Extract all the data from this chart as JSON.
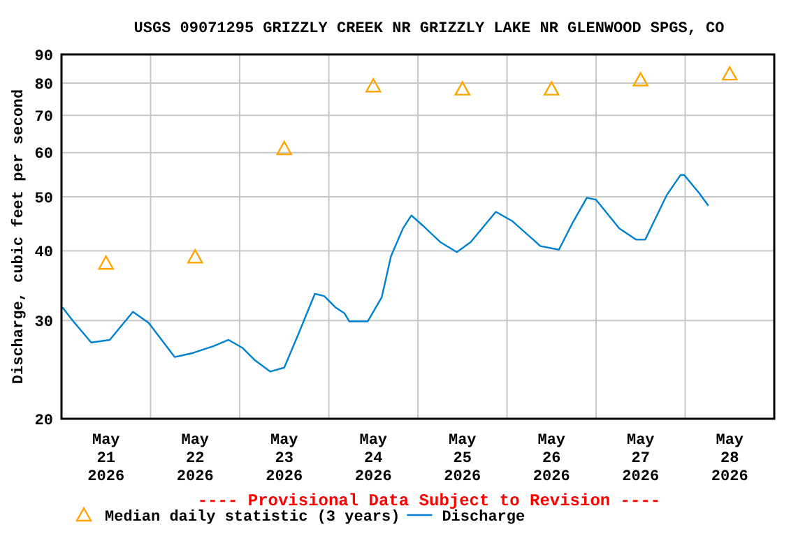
{
  "chart_data": {
    "type": "line",
    "title": "USGS 09071295 GRIZZLY CREEK NR GRIZZLY LAKE NR GLENWOOD SPGS, CO",
    "ylabel": "Discharge, cubic feet per second",
    "annotations": [
      "---- Provisional Data Subject to Revision ----"
    ],
    "xlim": [
      "2026-05-21T00:00",
      "2026-05-29T00:00"
    ],
    "xticks": [
      {
        "value": "2026-05-21T12:00",
        "label": "May\n21\n2026"
      },
      {
        "value": "2026-05-22T00:00",
        "label": null
      },
      {
        "value": "2026-05-22T12:00",
        "label": "May\n22\n2026"
      },
      {
        "value": "2026-05-23T00:00",
        "label": null
      },
      {
        "value": "2026-05-23T12:00",
        "label": "May\n23\n2026"
      },
      {
        "value": "2026-05-24T00:00",
        "label": null
      },
      {
        "value": "2026-05-24T12:00",
        "label": "May\n24\n2026"
      },
      {
        "value": "2026-05-25T00:00",
        "label": null
      },
      {
        "value": "2026-05-25T12:00",
        "label": "May\n25\n2026"
      },
      {
        "value": "2026-05-26T00:00",
        "label": null
      },
      {
        "value": "2026-05-26T12:00",
        "label": "May\n26\n2026"
      },
      {
        "value": "2026-05-27T00:00",
        "label": null
      },
      {
        "value": "2026-05-27T12:00",
        "label": "May\n27\n2026"
      },
      {
        "value": "2026-05-28T00:00",
        "label": null
      },
      {
        "value": "2026-05-28T12:00",
        "label": "May\n28\n2026"
      }
    ],
    "ylim": [
      20,
      90
    ],
    "yticks": [
      20,
      30,
      40,
      50,
      60,
      70,
      80,
      90
    ],
    "log": true,
    "grid": true,
    "legend": "bottom",
    "series": [
      {
        "name": "Median daily statistic (3 years)",
        "type": "scatter",
        "marker": "triangle",
        "color": "#ffa500",
        "x": [
          "2026-05-21T12:00",
          "2026-05-22T12:00",
          "2026-05-23T12:00",
          "2026-05-24T12:00",
          "2026-05-25T12:00",
          "2026-05-26T12:00",
          "2026-05-27T12:00",
          "2026-05-28T12:00"
        ],
        "values": [
          38,
          39,
          61,
          79,
          78,
          78,
          81,
          83
        ]
      },
      {
        "name": "Discharge",
        "marker": "none",
        "color": "#0080d0",
        "x": [
          "2026-05-21T00:15",
          "2026-05-21T03:00",
          "2026-05-21T08:00",
          "2026-05-21T13:00",
          "2026-05-21T19:15",
          "2026-05-21T23:30",
          "2026-05-22T06:30",
          "2026-05-22T11:00",
          "2026-05-22T17:00",
          "2026-05-22T21:00",
          "2026-05-23T00:45",
          "2026-05-23T04:00",
          "2026-05-23T08:15",
          "2026-05-23T12:00",
          "2026-05-23T15:45",
          "2026-05-23T20:15",
          "2026-05-23T22:45",
          "2026-05-24T01:45",
          "2026-05-24T04:15",
          "2026-05-24T05:30",
          "2026-05-24T10:30",
          "2026-05-24T14:15",
          "2026-05-24T16:45",
          "2026-05-24T20:00",
          "2026-05-24T22:15",
          "2026-05-25T01:30",
          "2026-05-25T06:00",
          "2026-05-25T10:30",
          "2026-05-25T14:15",
          "2026-05-25T21:00",
          "2026-05-26T01:30",
          "2026-05-26T09:00",
          "2026-05-26T14:00",
          "2026-05-26T17:45",
          "2026-05-26T21:30",
          "2026-05-27T00:00",
          "2026-05-27T06:15",
          "2026-05-27T10:45",
          "2026-05-27T13:15",
          "2026-05-27T19:00",
          "2026-05-27T22:45",
          "2026-05-27T23:45",
          "2026-05-28T03:45",
          "2026-05-28T06:15"
        ],
        "values": [
          31.7,
          30.0,
          27.4,
          27.7,
          31.1,
          29.7,
          25.8,
          26.2,
          27.0,
          27.7,
          26.8,
          25.5,
          24.3,
          24.7,
          28.3,
          33.5,
          33.2,
          31.7,
          30.9,
          29.9,
          29.9,
          33.0,
          39.1,
          43.9,
          46.3,
          44.3,
          41.5,
          39.8,
          41.5,
          47.0,
          45.2,
          40.8,
          40.2,
          45.0,
          49.8,
          49.4,
          43.9,
          41.9,
          41.9,
          50.3,
          54.7,
          54.7,
          50.8,
          48.2
        ]
      }
    ]
  }
}
